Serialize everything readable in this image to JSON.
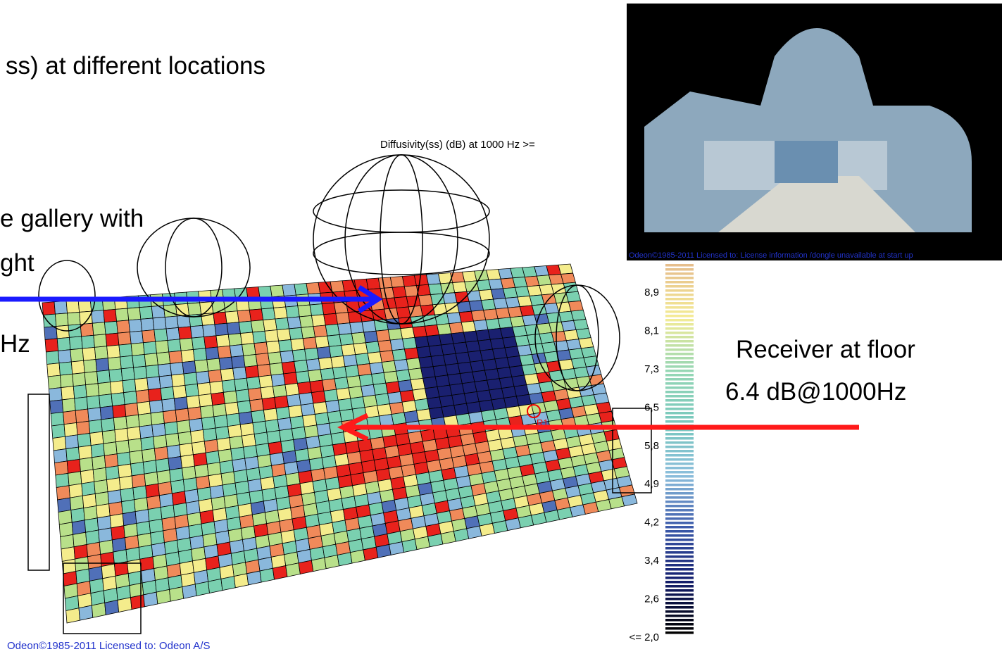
{
  "slide": {
    "heading": "ss) at different locations",
    "gallery_note": [
      "e gallery with",
      "ght",
      "Hz"
    ],
    "receiver_note": [
      "Receiver at floor",
      "6.4  dB@1000Hz"
    ]
  },
  "map": {
    "title": "Diffusivity(ss) (dB)  at 1000 Hz  >=",
    "scale_labels": [
      "8,9",
      "8,1",
      "7,3",
      "6,5",
      "5,8",
      "4,9",
      "4,2",
      "3,4",
      "2,6",
      "<= 2,0"
    ],
    "receiver_label": "R1",
    "copyright": "Odeon©1985-2011   Licensed to: Odeon A/S"
  },
  "photo": {
    "copyright": "Odeon©1985-2011   Licensed to: License information /dongle unavailable at start up"
  }
}
